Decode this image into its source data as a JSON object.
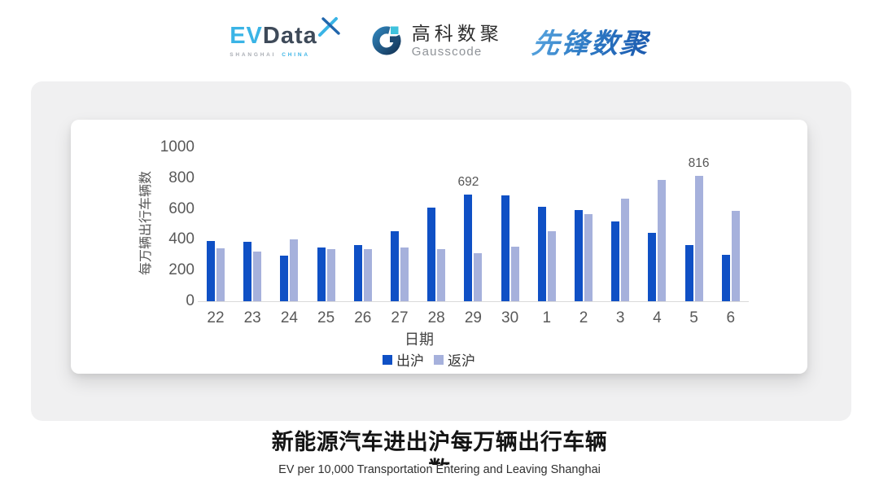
{
  "header": {
    "evdata": {
      "ev": "EV",
      "data": "Data",
      "sub_left": "SHANGHAI",
      "sub_right": "CHINA",
      "accent_color": "#3ab4e6",
      "dark_color": "#3e4a59"
    },
    "gausscode": {
      "cn": "高科数聚",
      "en": "Gausscode"
    },
    "pioneer": {
      "text": "先锋数聚",
      "color": "#2f7cc6"
    }
  },
  "chart_data": {
    "type": "bar",
    "title": "新能源汽车进出沪每万辆出行车辆数",
    "subtitle": "EV per 10,000 Transportation Entering and Leaving Shanghai",
    "xlabel": "日期",
    "ylabel": "每万辆出行车辆数",
    "categories": [
      "22",
      "23",
      "24",
      "25",
      "26",
      "27",
      "28",
      "29",
      "30",
      "1",
      "2",
      "3",
      "4",
      "5",
      "6"
    ],
    "series": [
      {
        "name": "出沪",
        "color": "#0f50c5",
        "values": [
          393,
          386,
          296,
          349,
          363,
          453,
          610,
          692,
          686,
          615,
          594,
          520,
          446,
          363,
          303
        ]
      },
      {
        "name": "返沪",
        "color": "#a6b1dc",
        "values": [
          346,
          323,
          402,
          340,
          337,
          349,
          340,
          312,
          356,
          457,
          568,
          665,
          790,
          816,
          589
        ]
      }
    ],
    "annotations": [
      {
        "series_index": 0,
        "category_index": 7,
        "text": "692"
      },
      {
        "series_index": 1,
        "category_index": 13,
        "text": "816"
      }
    ],
    "ylim": [
      0,
      1000
    ],
    "yticks": [
      0,
      200,
      400,
      600,
      800,
      1000
    ],
    "legend_position": "bottom",
    "grid": false
  }
}
